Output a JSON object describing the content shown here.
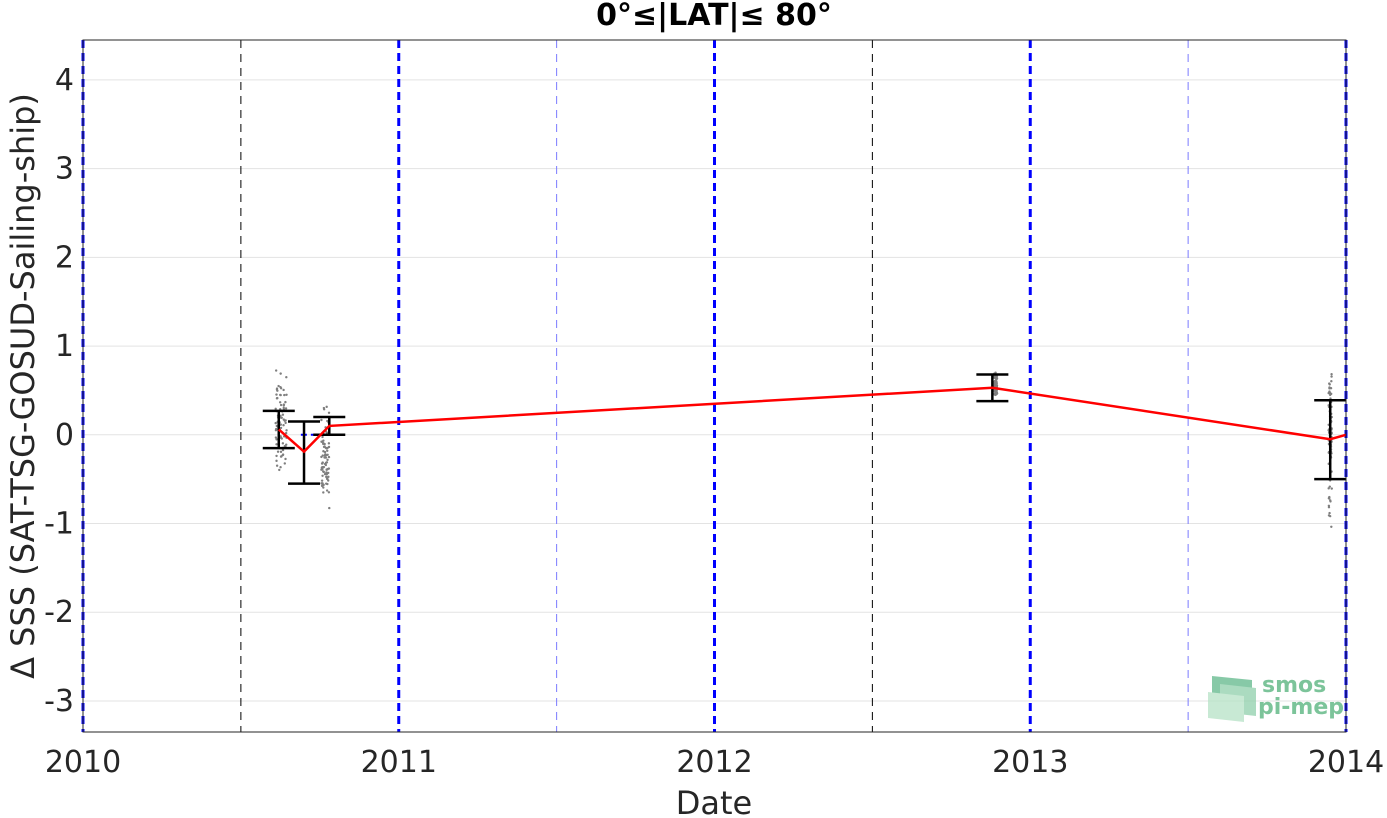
{
  "chart_data": {
    "type": "line",
    "title": "0°≤|LAT|≤ 80°",
    "xlabel": "Date",
    "ylabel": "Δ SSS (SAT-TSG-GOSUD-Sailing-ship)",
    "xlim": [
      2010,
      2014
    ],
    "ylim": [
      -3.35,
      4.45
    ],
    "x_ticks": [
      2010,
      2011,
      2012,
      2013,
      2014
    ],
    "x_tick_labels": [
      "2010",
      "2011",
      "2012",
      "2013",
      "2014"
    ],
    "y_ticks": [
      -3,
      -2,
      -1,
      0,
      1,
      2,
      3,
      4
    ],
    "y_tick_labels": [
      "-3",
      "-2",
      "-1",
      "0",
      "1",
      "2",
      "3",
      "4"
    ],
    "grid": true,
    "year_lines": [
      2010,
      2011,
      2012,
      2013,
      2014
    ],
    "half_year_lines": [
      2010.5,
      2011.5,
      2012.5,
      2013.5
    ],
    "colors": {
      "mean_line": "#ff0000",
      "error_bars": "#000000",
      "year_lines": "#0000ff",
      "half_year_lines_2010_2012": "#000000",
      "half_year_lines_2011_2013": "#7b7bff",
      "scatter": "#7f7f7f",
      "grid": "#e3e3e3",
      "logo": "#6fbf8f"
    },
    "series": [
      {
        "x": [
          2010.62,
          2010.7,
          2010.78,
          2012.88,
          2013.95,
          2014.0
        ],
        "values": [
          0.06,
          -0.19,
          0.1,
          0.53,
          -0.05,
          0.0
        ]
      }
    ],
    "error_bars": [
      {
        "x": 2010.62,
        "low": -0.15,
        "high": 0.27
      },
      {
        "x": 2010.7,
        "low": -0.55,
        "high": 0.15
      },
      {
        "x": 2010.78,
        "low": 0.0,
        "high": 0.2
      },
      {
        "x": 2012.88,
        "low": 0.38,
        "high": 0.68
      },
      {
        "x": 2013.95,
        "low": -0.5,
        "high": 0.39
      }
    ],
    "scatter_clusters": [
      {
        "x_from": 2010.61,
        "x_to": 2010.645,
        "y_min": -0.45,
        "y_max": 0.78
      },
      {
        "x_from": 2010.755,
        "x_to": 2010.78,
        "y_min": -0.85,
        "y_max": 0.42
      },
      {
        "x_from": 2012.885,
        "x_to": 2012.895,
        "y_min": 0.42,
        "y_max": 0.72
      },
      {
        "x_from": 2013.945,
        "x_to": 2013.955,
        "y_min": -1.1,
        "y_max": 0.95
      }
    ]
  },
  "logo": {
    "line1": "smos",
    "line2": "pi-mep"
  }
}
